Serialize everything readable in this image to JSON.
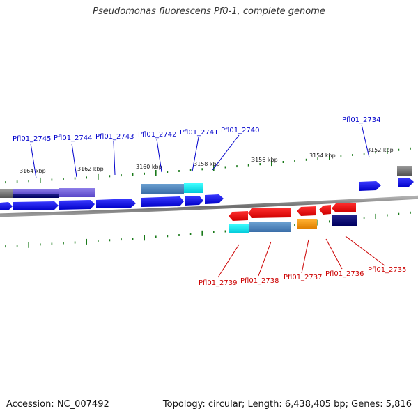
{
  "title": "Pseudomonas fluorescens Pf0-1, complete genome",
  "footer": {
    "accession": "Accession: NC_007492",
    "summary": "Topology: circular; Length: 6,438,405 bp; Genes: 5,816"
  },
  "ruler": {
    "tick_color": "#1a7a1a",
    "labels": [
      "3164 kbp",
      "3162 kbp",
      "3160 kbp",
      "3158 kbp",
      "3156 kbp",
      "3154 kbp",
      "3152 kbp"
    ]
  },
  "genes": {
    "top_color": "#0000cc",
    "bottom_color": "#cc0000",
    "forward": [
      "Pfl01_2745",
      "Pfl01_2744",
      "Pfl01_2743",
      "Pfl01_2742",
      "Pfl01_2741",
      "Pfl01_2740",
      "Pfl01_2734"
    ],
    "reverse": [
      "Pfl01_2739",
      "Pfl01_2738",
      "Pfl01_2737",
      "Pfl01_2736",
      "Pfl01_2735"
    ]
  }
}
